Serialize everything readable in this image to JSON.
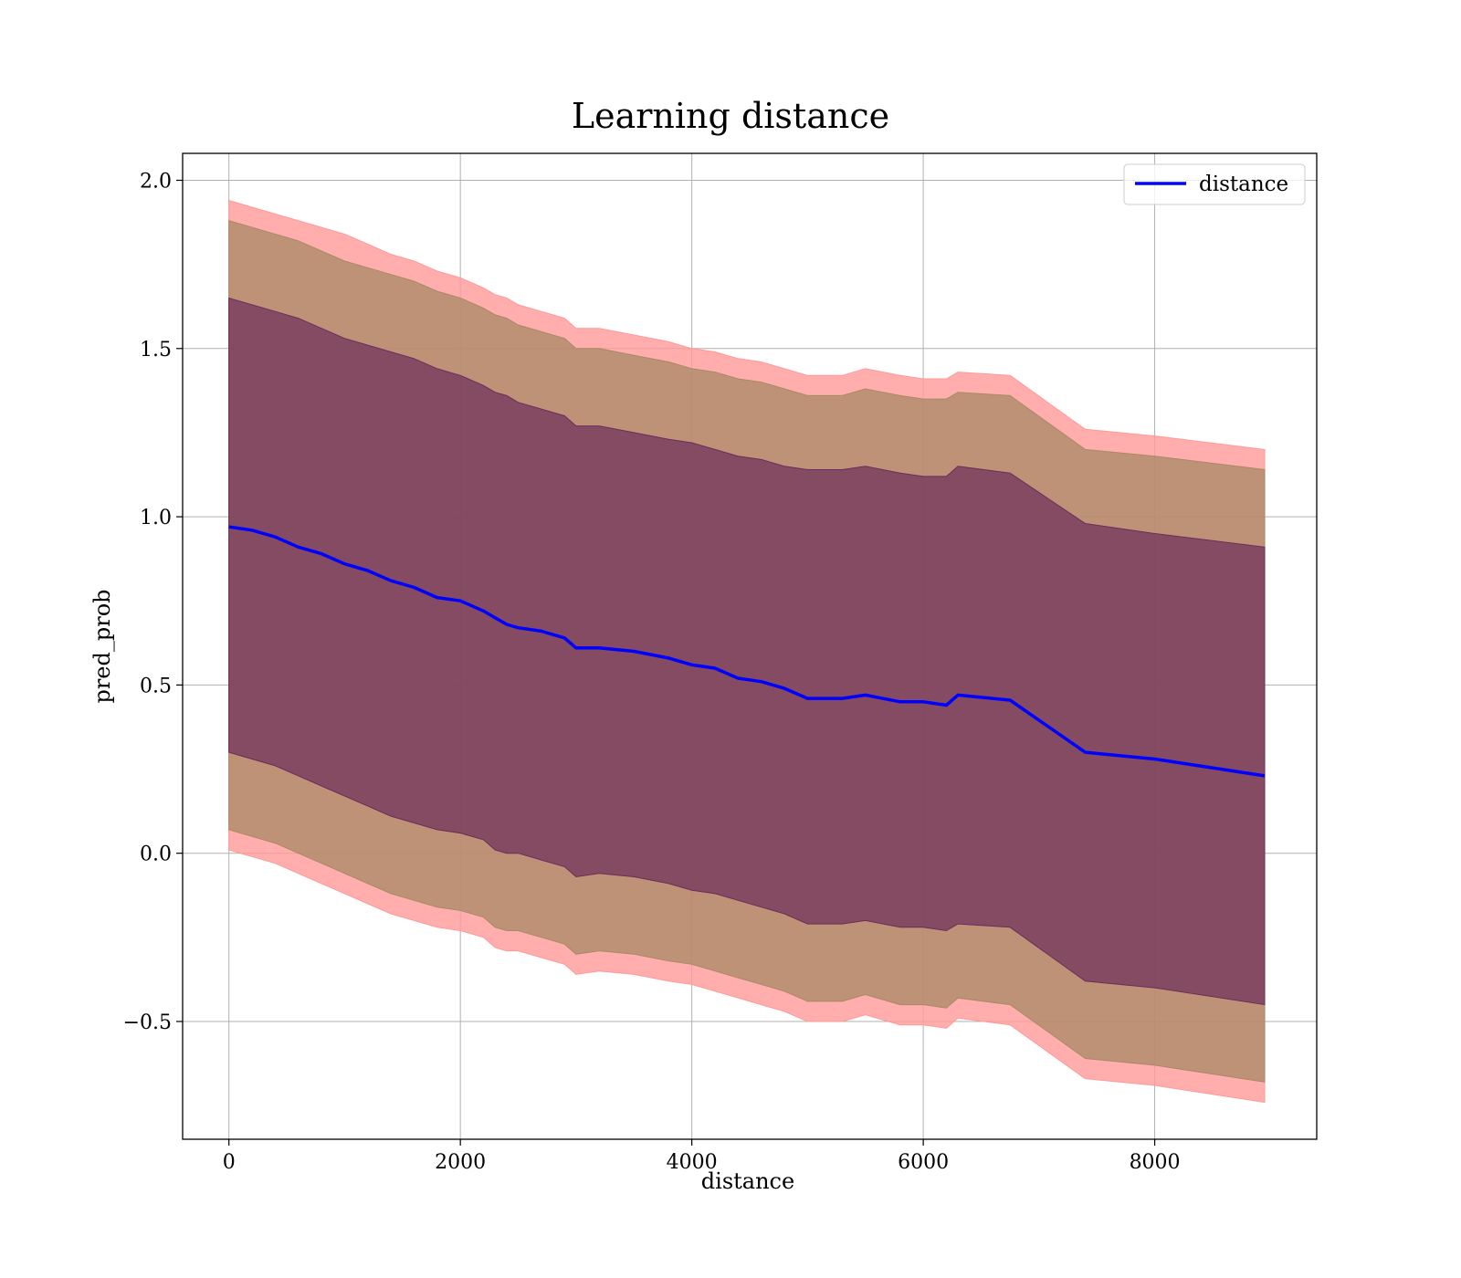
{
  "chart_data": {
    "type": "line",
    "title": "Learning distance",
    "xlabel": "distance",
    "ylabel": "pred_prob",
    "xlim": [
      -400,
      9400
    ],
    "ylim": [
      -0.85,
      2.08
    ],
    "xticks": [
      0,
      2000,
      4000,
      6000,
      8000
    ],
    "xtick_labels": [
      "0",
      "2000",
      "4000",
      "6000",
      "8000"
    ],
    "yticks": [
      -0.5,
      0.0,
      0.5,
      1.0,
      1.5,
      2.0
    ],
    "ytick_labels": [
      "−0.5",
      "0.0",
      "0.5",
      "1.0",
      "1.5",
      "2.0"
    ],
    "grid": true,
    "legend": {
      "position": "top-right",
      "entries": [
        "distance"
      ]
    },
    "colors": {
      "line": "#0000ff",
      "band_outer": "#ff9999",
      "band_middle": "#a88a66",
      "band_inner": "#6b2e5a",
      "grid": "#b0b0b0"
    },
    "series": [
      {
        "name": "distance",
        "x": [
          0,
          200,
          400,
          600,
          800,
          1000,
          1200,
          1400,
          1600,
          1800,
          2000,
          2200,
          2300,
          2400,
          2500,
          2700,
          2900,
          3000,
          3200,
          3500,
          3800,
          4000,
          4200,
          4400,
          4600,
          4800,
          5000,
          5300,
          5500,
          5800,
          6000,
          6200,
          6300,
          6750,
          7400,
          8000,
          8950
        ],
        "y": [
          0.97,
          0.96,
          0.94,
          0.91,
          0.89,
          0.86,
          0.84,
          0.81,
          0.79,
          0.76,
          0.75,
          0.72,
          0.7,
          0.68,
          0.67,
          0.66,
          0.64,
          0.61,
          0.61,
          0.6,
          0.58,
          0.56,
          0.55,
          0.52,
          0.51,
          0.49,
          0.46,
          0.46,
          0.47,
          0.45,
          0.45,
          0.44,
          0.47,
          0.455,
          0.3,
          0.28,
          0.23
        ]
      }
    ],
    "bands": [
      {
        "label": "outer",
        "x": [
          0,
          200,
          400,
          600,
          800,
          1000,
          1200,
          1400,
          1600,
          1800,
          2000,
          2200,
          2300,
          2400,
          2500,
          2700,
          2900,
          3000,
          3200,
          3500,
          3800,
          4000,
          4200,
          4400,
          4600,
          4800,
          5000,
          5300,
          5500,
          5800,
          6000,
          6200,
          6300,
          6750,
          7400,
          8000,
          8950
        ],
        "upper": [
          1.94,
          1.92,
          1.9,
          1.88,
          1.86,
          1.84,
          1.81,
          1.78,
          1.76,
          1.73,
          1.71,
          1.68,
          1.66,
          1.65,
          1.63,
          1.61,
          1.59,
          1.56,
          1.56,
          1.54,
          1.52,
          1.5,
          1.49,
          1.47,
          1.46,
          1.44,
          1.42,
          1.42,
          1.44,
          1.42,
          1.41,
          1.41,
          1.43,
          1.42,
          1.26,
          1.24,
          1.2
        ],
        "lower": [
          0.01,
          -0.01,
          -0.03,
          -0.06,
          -0.09,
          -0.12,
          -0.15,
          -0.18,
          -0.2,
          -0.22,
          -0.23,
          -0.25,
          -0.28,
          -0.29,
          -0.29,
          -0.31,
          -0.33,
          -0.36,
          -0.35,
          -0.36,
          -0.38,
          -0.39,
          -0.41,
          -0.43,
          -0.45,
          -0.47,
          -0.5,
          -0.5,
          -0.48,
          -0.51,
          -0.51,
          -0.52,
          -0.49,
          -0.51,
          -0.67,
          -0.69,
          -0.74
        ]
      },
      {
        "label": "middle",
        "x": [
          0,
          200,
          400,
          600,
          800,
          1000,
          1200,
          1400,
          1600,
          1800,
          2000,
          2200,
          2300,
          2400,
          2500,
          2700,
          2900,
          3000,
          3200,
          3500,
          3800,
          4000,
          4200,
          4400,
          4600,
          4800,
          5000,
          5300,
          5500,
          5800,
          6000,
          6200,
          6300,
          6750,
          7400,
          8000,
          8950
        ],
        "upper": [
          1.88,
          1.86,
          1.84,
          1.82,
          1.79,
          1.76,
          1.74,
          1.72,
          1.7,
          1.67,
          1.65,
          1.62,
          1.6,
          1.59,
          1.57,
          1.55,
          1.53,
          1.5,
          1.5,
          1.48,
          1.46,
          1.44,
          1.43,
          1.41,
          1.4,
          1.38,
          1.36,
          1.36,
          1.38,
          1.36,
          1.35,
          1.35,
          1.37,
          1.36,
          1.2,
          1.18,
          1.14
        ],
        "lower": [
          0.07,
          0.05,
          0.03,
          0.0,
          -0.03,
          -0.06,
          -0.09,
          -0.12,
          -0.14,
          -0.16,
          -0.17,
          -0.19,
          -0.22,
          -0.23,
          -0.23,
          -0.25,
          -0.27,
          -0.3,
          -0.29,
          -0.3,
          -0.32,
          -0.33,
          -0.35,
          -0.37,
          -0.39,
          -0.41,
          -0.44,
          -0.44,
          -0.42,
          -0.45,
          -0.45,
          -0.46,
          -0.43,
          -0.45,
          -0.61,
          -0.63,
          -0.68
        ]
      },
      {
        "label": "inner",
        "x": [
          0,
          200,
          400,
          600,
          800,
          1000,
          1200,
          1400,
          1600,
          1800,
          2000,
          2200,
          2300,
          2400,
          2500,
          2700,
          2900,
          3000,
          3200,
          3500,
          3800,
          4000,
          4200,
          4400,
          4600,
          4800,
          5000,
          5300,
          5500,
          5800,
          6000,
          6200,
          6300,
          6750,
          7400,
          8000,
          8950
        ],
        "upper": [
          1.65,
          1.63,
          1.61,
          1.59,
          1.56,
          1.53,
          1.51,
          1.49,
          1.47,
          1.44,
          1.42,
          1.39,
          1.37,
          1.36,
          1.34,
          1.32,
          1.3,
          1.27,
          1.27,
          1.25,
          1.23,
          1.22,
          1.2,
          1.18,
          1.17,
          1.15,
          1.14,
          1.14,
          1.15,
          1.13,
          1.12,
          1.12,
          1.15,
          1.13,
          0.98,
          0.95,
          0.91
        ],
        "lower": [
          0.3,
          0.28,
          0.26,
          0.23,
          0.2,
          0.17,
          0.14,
          0.11,
          0.09,
          0.07,
          0.06,
          0.04,
          0.01,
          0.0,
          0.0,
          -0.02,
          -0.04,
          -0.07,
          -0.06,
          -0.07,
          -0.09,
          -0.11,
          -0.12,
          -0.14,
          -0.16,
          -0.18,
          -0.21,
          -0.21,
          -0.2,
          -0.22,
          -0.22,
          -0.23,
          -0.21,
          -0.22,
          -0.38,
          -0.4,
          -0.45
        ]
      }
    ]
  }
}
